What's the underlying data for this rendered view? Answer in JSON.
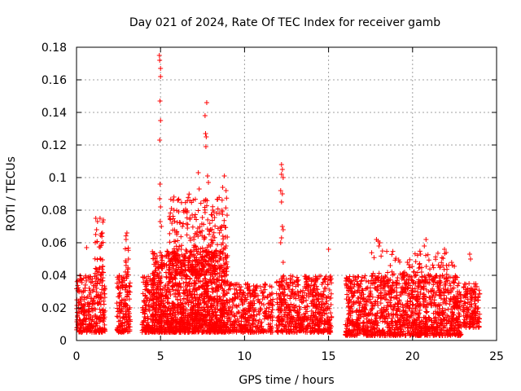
{
  "chart_data": {
    "type": "scatter",
    "title": "Day 021 of 2024, Rate Of TEC Index for receiver gamb",
    "xlabel": "GPS time / hours",
    "ylabel": "ROTI / TECUs",
    "xlim": [
      0,
      25
    ],
    "ylim": [
      0,
      0.18
    ],
    "xticks": [
      0,
      5,
      10,
      15,
      20,
      25
    ],
    "xtick_labels": [
      "0",
      "5",
      "10",
      "15",
      "20",
      "25"
    ],
    "yticks": [
      0,
      0.02,
      0.04,
      0.06,
      0.08,
      0.1,
      0.12,
      0.14,
      0.16,
      0.18
    ],
    "ytick_labels": [
      "0",
      "0.02",
      "0.04",
      "0.06",
      "0.08",
      "0.1",
      "0.12",
      "0.14",
      "0.16",
      "0.18"
    ],
    "grid": true,
    "marker": "+",
    "series_color": "#ff0000",
    "clusters": [
      {
        "x_start": 0.0,
        "x_end": 1.7,
        "y_low": 0.005,
        "y_high": 0.04,
        "n": 300
      },
      {
        "x_start": 1.1,
        "x_end": 1.6,
        "y_low": 0.04,
        "y_high": 0.076,
        "n": 40
      },
      {
        "x_start": 2.4,
        "x_end": 3.2,
        "y_low": 0.005,
        "y_high": 0.04,
        "n": 160
      },
      {
        "x_start": 2.9,
        "x_end": 3.1,
        "y_low": 0.04,
        "y_high": 0.066,
        "n": 14
      },
      {
        "x_start": 3.9,
        "x_end": 4.6,
        "y_low": 0.005,
        "y_high": 0.04,
        "n": 140
      },
      {
        "x_start": 4.5,
        "x_end": 9.0,
        "y_low": 0.005,
        "y_high": 0.055,
        "n": 1400
      },
      {
        "x_start": 5.5,
        "x_end": 9.0,
        "y_low": 0.04,
        "y_high": 0.09,
        "n": 300
      },
      {
        "x_start": 9.0,
        "x_end": 11.7,
        "y_low": 0.005,
        "y_high": 0.035,
        "n": 380
      },
      {
        "x_start": 11.9,
        "x_end": 15.2,
        "y_low": 0.005,
        "y_high": 0.04,
        "n": 600
      },
      {
        "x_start": 16.0,
        "x_end": 22.9,
        "y_low": 0.003,
        "y_high": 0.04,
        "n": 1300
      },
      {
        "x_start": 17.5,
        "x_end": 22.5,
        "y_low": 0.035,
        "y_high": 0.055,
        "n": 120
      },
      {
        "x_start": 23.0,
        "x_end": 24.0,
        "y_low": 0.008,
        "y_high": 0.035,
        "n": 160
      }
    ],
    "outliers": [
      {
        "x": 4.93,
        "y": 0.175
      },
      {
        "x": 4.95,
        "y": 0.172
      },
      {
        "x": 5.0,
        "y": 0.167
      },
      {
        "x": 5.0,
        "y": 0.162
      },
      {
        "x": 4.97,
        "y": 0.147
      },
      {
        "x": 5.0,
        "y": 0.135
      },
      {
        "x": 4.95,
        "y": 0.123
      },
      {
        "x": 4.97,
        "y": 0.096
      },
      {
        "x": 4.95,
        "y": 0.087
      },
      {
        "x": 5.0,
        "y": 0.082
      },
      {
        "x": 4.98,
        "y": 0.073
      },
      {
        "x": 5.05,
        "y": 0.07
      },
      {
        "x": 7.75,
        "y": 0.146
      },
      {
        "x": 7.65,
        "y": 0.138
      },
      {
        "x": 7.68,
        "y": 0.127
      },
      {
        "x": 7.72,
        "y": 0.125
      },
      {
        "x": 7.7,
        "y": 0.119
      },
      {
        "x": 7.25,
        "y": 0.103
      },
      {
        "x": 7.8,
        "y": 0.101
      },
      {
        "x": 7.85,
        "y": 0.097
      },
      {
        "x": 8.8,
        "y": 0.101
      },
      {
        "x": 8.7,
        "y": 0.094
      },
      {
        "x": 8.9,
        "y": 0.092
      },
      {
        "x": 7.3,
        "y": 0.093
      },
      {
        "x": 12.2,
        "y": 0.108
      },
      {
        "x": 12.25,
        "y": 0.105
      },
      {
        "x": 12.2,
        "y": 0.102
      },
      {
        "x": 12.3,
        "y": 0.1
      },
      {
        "x": 12.15,
        "y": 0.092
      },
      {
        "x": 12.25,
        "y": 0.09
      },
      {
        "x": 12.2,
        "y": 0.085
      },
      {
        "x": 12.25,
        "y": 0.07
      },
      {
        "x": 12.3,
        "y": 0.068
      },
      {
        "x": 12.2,
        "y": 0.063
      },
      {
        "x": 12.15,
        "y": 0.06
      },
      {
        "x": 12.3,
        "y": 0.048
      },
      {
        "x": 15.0,
        "y": 0.056
      },
      {
        "x": 17.85,
        "y": 0.062
      },
      {
        "x": 17.95,
        "y": 0.061
      },
      {
        "x": 18.05,
        "y": 0.06
      },
      {
        "x": 18.0,
        "y": 0.058
      },
      {
        "x": 20.8,
        "y": 0.062
      },
      {
        "x": 20.7,
        "y": 0.058
      },
      {
        "x": 21.9,
        "y": 0.056
      },
      {
        "x": 22.0,
        "y": 0.054
      },
      {
        "x": 23.4,
        "y": 0.053
      },
      {
        "x": 23.45,
        "y": 0.05
      },
      {
        "x": 1.6,
        "y": 0.074
      },
      {
        "x": 1.4,
        "y": 0.075
      },
      {
        "x": 1.25,
        "y": 0.073
      },
      {
        "x": 0.6,
        "y": 0.057
      },
      {
        "x": 3.0,
        "y": 0.066
      },
      {
        "x": 2.95,
        "y": 0.062
      },
      {
        "x": 6.3,
        "y": 0.07
      },
      {
        "x": 6.6,
        "y": 0.069
      },
      {
        "x": 8.35,
        "y": 0.078
      },
      {
        "x": 8.1,
        "y": 0.08
      }
    ]
  }
}
